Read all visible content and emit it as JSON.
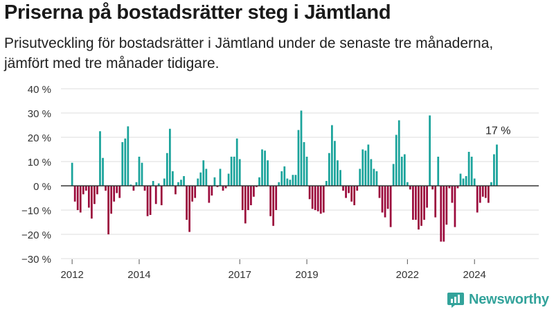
{
  "title": "Priserna på bostadsrätter steg i Jämtland",
  "subtitle": "Prisutveckling för bostadsrätter i Jämtland under de senaste tre månaderna, jämfört med tre månader tidigare.",
  "brand": {
    "name": "Newsworthy",
    "icon": "newsworthy-logo-icon"
  },
  "colors": {
    "positive": "#1aa39b",
    "negative": "#9b0a3c",
    "axis": "#333333",
    "grid": "#dddddd"
  },
  "chart_data": {
    "type": "bar",
    "title": "Priserna på bostadsrätter steg i Jämtland",
    "y_unit": "%",
    "ylim": [
      -30,
      40
    ],
    "y_ticks": [
      -30,
      -20,
      -10,
      0,
      10,
      20,
      30,
      40
    ],
    "y_tick_labels": [
      "−30 %",
      "−20 %",
      "−10 %",
      "0 %",
      "10 %",
      "20 %",
      "30 %",
      "40 %"
    ],
    "x_range": [
      "2011-09",
      "2025-12"
    ],
    "x_ticks": [
      {
        "date": "2012-01",
        "label": "2012"
      },
      {
        "date": "2014-01",
        "label": "2014"
      },
      {
        "date": "2017-01",
        "label": "2017"
      },
      {
        "date": "2019-01",
        "label": "2019"
      },
      {
        "date": "2022-01",
        "label": "2022"
      },
      {
        "date": "2024-01",
        "label": "2024"
      }
    ],
    "grid": "horizontal",
    "series": [
      {
        "start": "2012-01",
        "frequency": "monthly",
        "values": [
          9.5,
          -6.5,
          -10,
          -11,
          -3.5,
          -2,
          -9,
          -13.5,
          -7.5,
          -3.5,
          22.5,
          11.5,
          -2,
          -20,
          -11.5,
          -6.5,
          -3,
          -5,
          18,
          19.5,
          24.5,
          0.5,
          -2,
          1.5,
          12,
          9.5,
          -2,
          -12.5,
          -12,
          2,
          -7.5,
          1,
          -8,
          3,
          13.5,
          23.5,
          6,
          -3.5,
          1.5,
          2.5,
          4,
          -14,
          -19,
          -6.5,
          -5,
          3,
          5.5,
          10.5,
          7,
          -7,
          -4,
          3.5,
          -0.5,
          7,
          -2,
          -1,
          5,
          12,
          12,
          19.5,
          11,
          -10,
          -15.5,
          -10,
          -8,
          -4.5,
          -0.5,
          3.5,
          15,
          14.5,
          10.5,
          -12.5,
          -16.5,
          -10,
          1.5,
          6,
          8,
          3,
          2.5,
          4.5,
          4.5,
          23,
          31,
          18,
          12,
          -5.5,
          -9.5,
          -10,
          -10.5,
          -11.5,
          -11,
          2,
          13.5,
          25,
          18.5,
          10.5,
          6.5,
          -2,
          -5,
          -3,
          -6.5,
          -8,
          -2,
          7,
          15,
          14.5,
          17,
          11,
          7,
          6,
          -5,
          -11,
          -13,
          -9.5,
          -17,
          9,
          21,
          27,
          12,
          13,
          1.5,
          -1.5,
          -14,
          -14,
          -18,
          -16.5,
          -14,
          -9,
          29,
          -1.5,
          -13,
          12,
          -23,
          -23,
          -16,
          -1,
          -7,
          -17,
          -1,
          5,
          3,
          4,
          14,
          12,
          3,
          -11,
          -7,
          -4.5,
          -5,
          -7,
          1.5,
          13,
          17
        ]
      }
    ],
    "last_value_label": "17 %"
  }
}
